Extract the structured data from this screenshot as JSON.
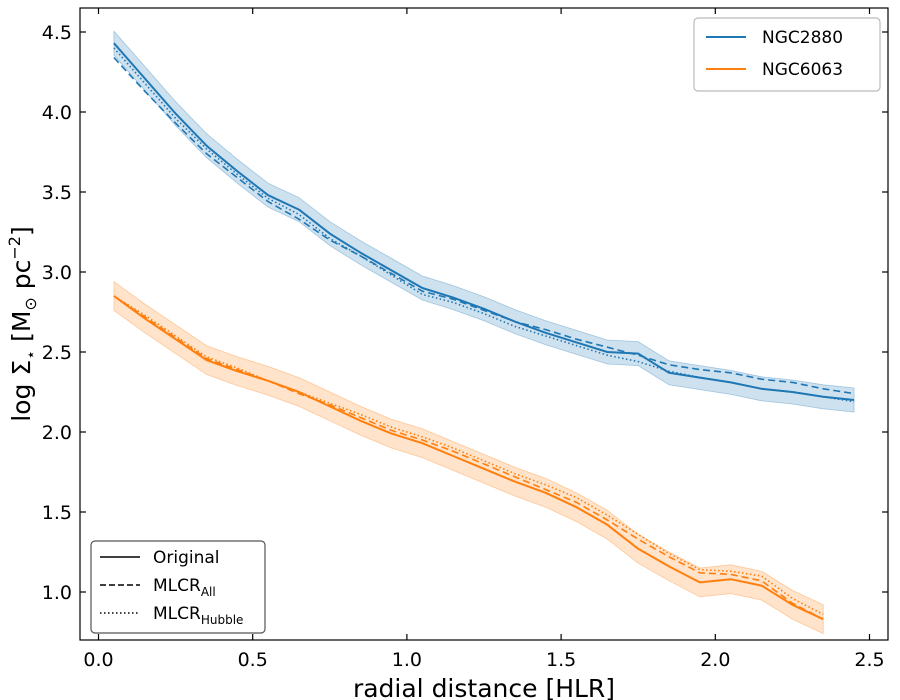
{
  "chart_data": {
    "type": "line",
    "title": "",
    "xlabel": "radial distance [HLR]",
    "ylabel_parts": {
      "prefix": "log Σ",
      "sub": "⋆",
      "mid": " [M",
      "sun": "⊙",
      "unit": " pc",
      "exp": "−2",
      "close": "]"
    },
    "xlim": [
      -0.06,
      2.56
    ],
    "ylim": [
      0.7,
      4.65
    ],
    "xticks": [
      0.0,
      0.5,
      1.0,
      1.5,
      2.0,
      2.5
    ],
    "xtick_labels": [
      "0.0",
      "0.5",
      "1.0",
      "1.5",
      "2.0",
      "2.5"
    ],
    "yticks": [
      1.0,
      1.5,
      2.0,
      2.5,
      3.0,
      3.5,
      4.0,
      4.5
    ],
    "ytick_labels": [
      "1.0",
      "1.5",
      "2.0",
      "2.5",
      "3.0",
      "3.5",
      "4.0",
      "4.5"
    ],
    "galaxy_legend": [
      {
        "label": "NGC2880",
        "color": "#1f77b4"
      },
      {
        "label": "NGC6063",
        "color": "#ff7f0e"
      }
    ],
    "style_legend": [
      {
        "label": "Original",
        "style": "solid"
      },
      {
        "label": "MLCR",
        "sub": "All",
        "style": "dashed"
      },
      {
        "label": "MLCR",
        "sub": "Hubble",
        "style": "dotted"
      }
    ],
    "series": [
      {
        "name": "NGC2880",
        "color": "#1f77b4",
        "x": [
          0.05,
          0.15,
          0.25,
          0.35,
          0.45,
          0.55,
          0.65,
          0.75,
          0.85,
          0.95,
          1.05,
          1.15,
          1.25,
          1.35,
          1.45,
          1.55,
          1.65,
          1.75,
          1.85,
          1.95,
          2.05,
          2.15,
          2.25,
          2.35,
          2.45
        ],
        "original": [
          4.43,
          4.21,
          3.99,
          3.79,
          3.63,
          3.48,
          3.39,
          3.24,
          3.12,
          3.01,
          2.9,
          2.84,
          2.77,
          2.69,
          2.62,
          2.56,
          2.5,
          2.49,
          2.37,
          2.34,
          2.31,
          2.27,
          2.25,
          2.22,
          2.2
        ],
        "mlcr_all": [
          4.34,
          4.13,
          3.93,
          3.74,
          3.59,
          3.44,
          3.33,
          3.2,
          3.1,
          2.99,
          2.88,
          2.83,
          2.76,
          2.69,
          2.64,
          2.58,
          2.53,
          2.48,
          2.42,
          2.39,
          2.37,
          2.33,
          2.31,
          2.27,
          2.24
        ],
        "mlcr_hubble": [
          4.4,
          4.18,
          3.96,
          3.77,
          3.61,
          3.46,
          3.36,
          3.21,
          3.1,
          2.98,
          2.86,
          2.81,
          2.74,
          2.66,
          2.6,
          2.54,
          2.48,
          2.44,
          2.38,
          2.34,
          2.31,
          2.27,
          2.25,
          2.22,
          2.19
        ],
        "band_half_width": 0.075
      },
      {
        "name": "NGC6063",
        "color": "#ff7f0e",
        "x": [
          0.05,
          0.15,
          0.25,
          0.35,
          0.45,
          0.55,
          0.65,
          0.75,
          0.85,
          0.95,
          1.05,
          1.15,
          1.25,
          1.35,
          1.45,
          1.55,
          1.65,
          1.75,
          1.85,
          1.95,
          2.05,
          2.15,
          2.25,
          2.35
        ],
        "original": [
          2.85,
          2.71,
          2.58,
          2.45,
          2.38,
          2.32,
          2.25,
          2.16,
          2.07,
          1.99,
          1.93,
          1.85,
          1.77,
          1.69,
          1.62,
          1.53,
          1.42,
          1.27,
          1.16,
          1.06,
          1.08,
          1.04,
          0.92,
          0.83
        ],
        "mlcr_all": [
          2.85,
          2.72,
          2.59,
          2.46,
          2.39,
          2.32,
          2.24,
          2.17,
          2.09,
          2.01,
          1.95,
          1.88,
          1.8,
          1.72,
          1.64,
          1.56,
          1.45,
          1.33,
          1.22,
          1.12,
          1.11,
          1.07,
          0.93,
          0.83
        ],
        "mlcr_hubble": [
          2.85,
          2.73,
          2.6,
          2.47,
          2.4,
          2.32,
          2.25,
          2.18,
          2.11,
          2.03,
          1.97,
          1.9,
          1.82,
          1.74,
          1.67,
          1.59,
          1.48,
          1.36,
          1.24,
          1.14,
          1.13,
          1.1,
          0.96,
          0.86
        ],
        "band_half_width": 0.09
      }
    ]
  }
}
